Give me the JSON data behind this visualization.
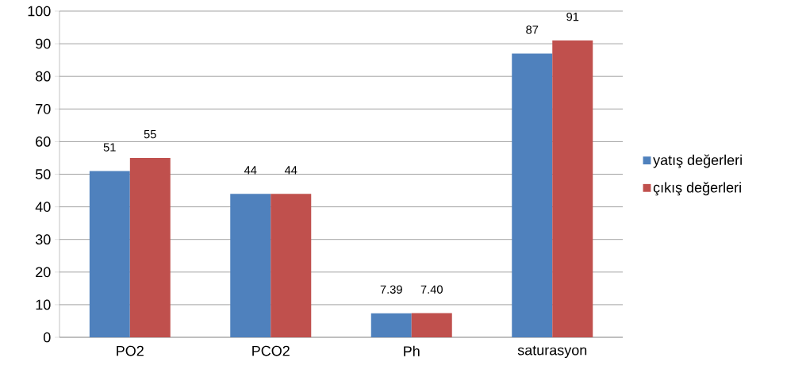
{
  "chart_data": {
    "type": "bar",
    "categories": [
      "PO2",
      "PCO2",
      "Ph",
      "saturasyon"
    ],
    "series": [
      {
        "name": "yatış değerleri",
        "color": "#4f81bd",
        "values": [
          51,
          44,
          7.39,
          87
        ],
        "value_labels": [
          "51",
          "44",
          "7.39",
          "87"
        ]
      },
      {
        "name": "çıkış değerleri",
        "color": "#c0504d",
        "values": [
          55,
          44,
          7.4,
          91
        ],
        "value_labels": [
          "55",
          "44",
          "7.40",
          "91"
        ]
      }
    ],
    "ylim": [
      0,
      100
    ],
    "yticks": [
      0,
      10,
      20,
      30,
      40,
      50,
      60,
      70,
      80,
      90,
      100
    ],
    "grid": "y",
    "legend": "right"
  }
}
